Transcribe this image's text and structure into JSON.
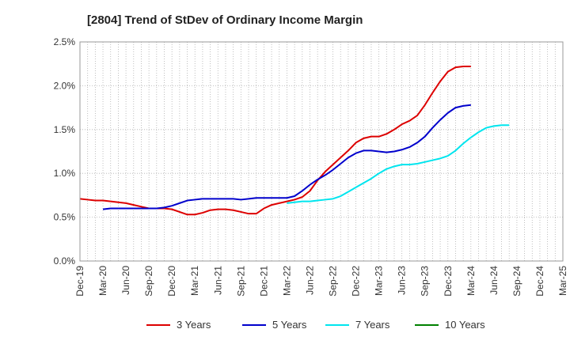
{
  "chart_data": {
    "type": "line",
    "title": "[2804]  Trend of StDev of Ordinary Income Margin",
    "xlabel": "",
    "ylabel": "",
    "ylim": [
      0,
      2.5
    ],
    "yticks": [
      0,
      0.5,
      1.0,
      1.5,
      2.0,
      2.5
    ],
    "ytick_labels": [
      "0.0%",
      "0.5%",
      "1.0%",
      "1.5%",
      "2.0%",
      "2.5%"
    ],
    "x_tick_labels": [
      "Dec-19",
      "Mar-20",
      "Jun-20",
      "Sep-20",
      "Dec-20",
      "Mar-21",
      "Jun-21",
      "Sep-21",
      "Dec-21",
      "Mar-22",
      "Jun-22",
      "Sep-22",
      "Dec-22",
      "Mar-23",
      "Jun-23",
      "Sep-23",
      "Dec-23",
      "Mar-24",
      "Jun-24",
      "Sep-24",
      "Dec-24",
      "Mar-25"
    ],
    "x_start": "Dec-19",
    "grid": true,
    "legend_position": "bottom",
    "series": [
      {
        "name": "3 Years",
        "color": "#dd0000",
        "start": "Dec-19",
        "values": [
          0.71,
          0.7,
          0.69,
          0.69,
          0.68,
          0.67,
          0.66,
          0.64,
          0.62,
          0.6,
          0.6,
          0.6,
          0.59,
          0.56,
          0.53,
          0.53,
          0.55,
          0.58,
          0.59,
          0.59,
          0.58,
          0.56,
          0.54,
          0.54,
          0.6,
          0.64,
          0.66,
          0.68,
          0.7,
          0.73,
          0.8,
          0.92,
          1.02,
          1.1,
          1.18,
          1.26,
          1.35,
          1.4,
          1.42,
          1.42,
          1.45,
          1.5,
          1.56,
          1.6,
          1.66,
          1.78,
          1.92,
          2.05,
          2.16,
          2.21,
          2.22,
          2.22
        ]
      },
      {
        "name": "5 Years",
        "color": "#0000cc",
        "start": "Mar-20",
        "values": [
          0.59,
          0.6,
          0.6,
          0.6,
          0.6,
          0.6,
          0.6,
          0.6,
          0.61,
          0.63,
          0.66,
          0.69,
          0.7,
          0.71,
          0.71,
          0.71,
          0.71,
          0.71,
          0.7,
          0.71,
          0.72,
          0.72,
          0.72,
          0.72,
          0.72,
          0.74,
          0.8,
          0.87,
          0.93,
          0.98,
          1.04,
          1.11,
          1.18,
          1.23,
          1.26,
          1.26,
          1.25,
          1.24,
          1.25,
          1.27,
          1.3,
          1.35,
          1.42,
          1.52,
          1.61,
          1.69,
          1.75,
          1.77,
          1.78
        ]
      },
      {
        "name": "7 Years",
        "color": "#00e5ee",
        "start": "Mar-22",
        "values": [
          0.66,
          0.67,
          0.68,
          0.68,
          0.69,
          0.7,
          0.71,
          0.74,
          0.79,
          0.84,
          0.89,
          0.94,
          1.0,
          1.05,
          1.08,
          1.1,
          1.1,
          1.11,
          1.13,
          1.15,
          1.17,
          1.2,
          1.26,
          1.34,
          1.41,
          1.47,
          1.52,
          1.54,
          1.55,
          1.55
        ]
      },
      {
        "name": "10 Years",
        "color": "#008000",
        "start": "Dec-24",
        "values": []
      }
    ]
  }
}
